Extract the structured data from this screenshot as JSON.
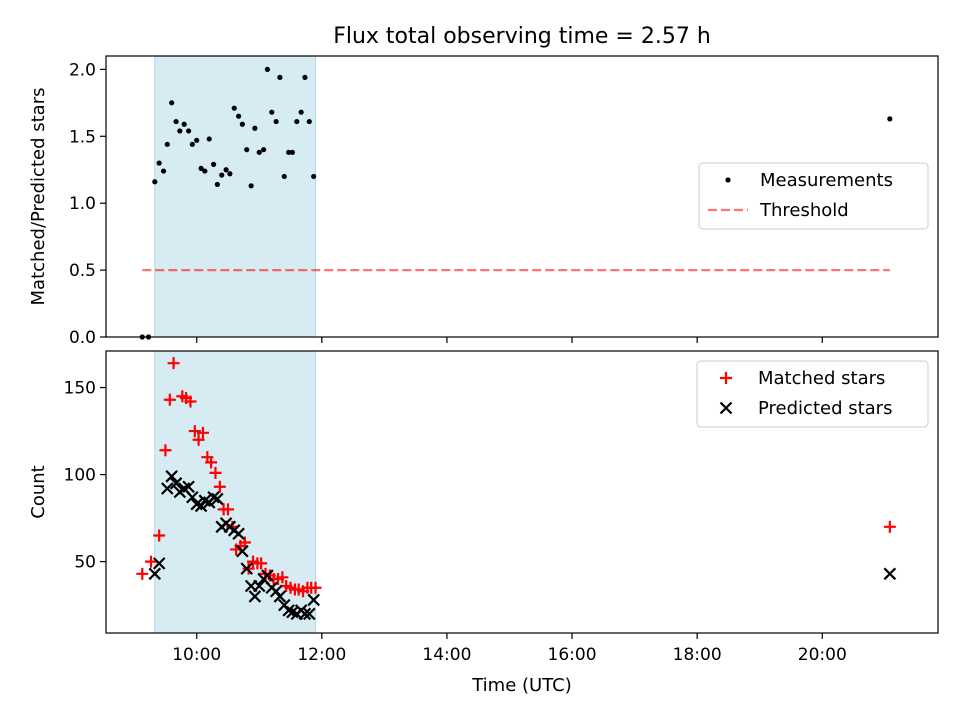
{
  "chart_data": {
    "title": "Flux total observing time = 2.57 h",
    "xlabel": "Time (UTC)",
    "xlim": [
      8.55,
      21.85
    ],
    "xticks": [
      10,
      12,
      14,
      16,
      18,
      20
    ],
    "xtick_labels": [
      "10:00",
      "12:00",
      "14:00",
      "16:00",
      "18:00",
      "20:00"
    ],
    "highlight_span": [
      9.33,
      11.9
    ],
    "colors": {
      "highlight": "#add8e6",
      "measurement": "#000000",
      "threshold": "#ff0000",
      "matched": "#ff0000",
      "predicted": "#000000"
    },
    "panels": [
      {
        "type": "scatter",
        "ylabel": "Matched/Predicted stars",
        "ylim": [
          0,
          2.1
        ],
        "yticks": [
          0.0,
          0.5,
          1.0,
          1.5,
          2.0
        ],
        "ytick_labels": [
          "0.0",
          "0.5",
          "1.0",
          "1.5",
          "2.0"
        ],
        "legend_position": "center-right",
        "legend": [
          {
            "label": "Measurements",
            "marker": "dot"
          },
          {
            "label": "Threshold",
            "marker": "dashed-line"
          }
        ],
        "threshold": {
          "value": 0.5,
          "x_range": [
            9.13,
            21.08
          ]
        },
        "series": [
          {
            "name": "Measurements",
            "x": [
              9.13,
              9.23,
              9.33,
              9.4,
              9.47,
              9.53,
              9.6,
              9.67,
              9.73,
              9.8,
              9.87,
              9.93,
              10.0,
              10.07,
              10.13,
              10.2,
              10.27,
              10.33,
              10.4,
              10.47,
              10.53,
              10.6,
              10.67,
              10.73,
              10.8,
              10.87,
              10.93,
              11.0,
              11.07,
              11.13,
              11.2,
              11.27,
              11.33,
              11.4,
              11.47,
              11.53,
              11.6,
              11.67,
              11.73,
              11.8,
              11.87,
              21.08
            ],
            "y": [
              0.0,
              0.0,
              1.16,
              1.3,
              1.24,
              1.44,
              1.75,
              1.61,
              1.54,
              1.59,
              1.54,
              1.44,
              1.47,
              1.26,
              1.24,
              1.48,
              1.29,
              1.14,
              1.21,
              1.25,
              1.22,
              1.71,
              1.65,
              1.59,
              1.4,
              1.13,
              1.56,
              1.38,
              1.4,
              2.0,
              1.68,
              1.61,
              1.94,
              1.2,
              1.38,
              1.38,
              1.61,
              1.68,
              1.94,
              1.61,
              1.2,
              1.63
            ]
          }
        ]
      },
      {
        "type": "scatter",
        "ylabel": "Count",
        "ylim": [
          9,
          171
        ],
        "yticks": [
          50,
          100,
          150
        ],
        "ytick_labels": [
          "50",
          "100",
          "150"
        ],
        "legend_position": "top-right",
        "legend": [
          {
            "label": "Matched stars",
            "marker": "plus"
          },
          {
            "label": "Predicted stars",
            "marker": "x"
          }
        ],
        "series": [
          {
            "name": "Matched stars",
            "x": [
              9.13,
              9.27,
              9.4,
              9.5,
              9.57,
              9.63,
              9.77,
              9.83,
              9.9,
              9.97,
              10.03,
              10.1,
              10.17,
              10.23,
              10.3,
              10.37,
              10.43,
              10.5,
              10.57,
              10.63,
              10.7,
              10.77,
              10.83,
              10.9,
              10.97,
              11.03,
              11.1,
              11.17,
              11.23,
              11.3,
              11.37,
              11.43,
              11.5,
              11.57,
              11.63,
              11.7,
              11.77,
              11.83,
              11.9,
              21.08
            ],
            "y": [
              43,
              50,
              65,
              114,
              143,
              164,
              145,
              144,
              142,
              125,
              120,
              124,
              110,
              107,
              101,
              93,
              80,
              80,
              70,
              57,
              59,
              61,
              46,
              50,
              49,
              49,
              43,
              42,
              40,
              40,
              41,
              36,
              35,
              34,
              34,
              33,
              35,
              35,
              35,
              70
            ]
          },
          {
            "name": "Predicted stars",
            "x": [
              9.33,
              9.4,
              9.53,
              9.6,
              9.67,
              9.73,
              9.8,
              9.87,
              9.93,
              10.0,
              10.07,
              10.13,
              10.2,
              10.27,
              10.33,
              10.4,
              10.47,
              10.53,
              10.6,
              10.67,
              10.73,
              10.8,
              10.87,
              10.93,
              11.0,
              11.07,
              11.13,
              11.2,
              11.27,
              11.33,
              11.4,
              11.47,
              11.53,
              11.6,
              11.67,
              11.73,
              11.8,
              11.87,
              21.08
            ],
            "y": [
              43,
              49,
              92,
              99,
              95,
              90,
              92,
              93,
              87,
              83,
              82,
              85,
              84,
              87,
              86,
              70,
              72,
              70,
              68,
              66,
              56,
              46,
              36,
              30,
              36,
              40,
              42,
              35,
              33,
              30,
              25,
              22,
              21,
              20,
              22,
              20,
              20,
              28,
              43
            ]
          }
        ]
      }
    ]
  }
}
